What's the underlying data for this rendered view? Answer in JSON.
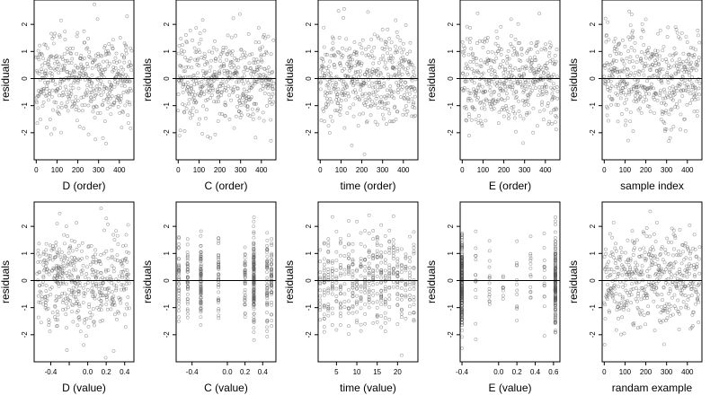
{
  "colors": {
    "points": "#555555",
    "axis": "#000000",
    "background": "#ffffff"
  },
  "chart_data": [
    {
      "type": "scatter",
      "xlabel": "D (order)",
      "ylabel": "residuals",
      "xlim": [
        -10,
        470
      ],
      "ylim": [
        -3.0,
        2.9
      ],
      "x_ticks": [
        0,
        100,
        200,
        300,
        400
      ],
      "x_tick_labels": [
        "0",
        "100",
        "200",
        "300",
        "400"
      ],
      "y_ticks": [
        -2,
        -1,
        0,
        1,
        2
      ],
      "y_tick_labels": [
        "-2",
        "-1",
        "0",
        "1",
        "2"
      ],
      "reference_line": 0,
      "distribution": {
        "kind": "index",
        "n": 460,
        "sd": 0.85
      }
    },
    {
      "type": "scatter",
      "xlabel": "C (order)",
      "ylabel": "residuals",
      "xlim": [
        -10,
        470
      ],
      "ylim": [
        -3.0,
        2.9
      ],
      "x_ticks": [
        0,
        100,
        200,
        300,
        400
      ],
      "x_tick_labels": [
        "0",
        "100",
        "200",
        "300",
        "400"
      ],
      "y_ticks": [
        -2,
        -1,
        0,
        1,
        2
      ],
      "y_tick_labels": [
        "-2",
        "-1",
        "0",
        "1",
        "2"
      ],
      "reference_line": 0,
      "distribution": {
        "kind": "index",
        "n": 460,
        "sd": 0.85
      }
    },
    {
      "type": "scatter",
      "xlabel": "time (order)",
      "ylabel": "residuals",
      "xlim": [
        -10,
        470
      ],
      "ylim": [
        -3.0,
        2.9
      ],
      "x_ticks": [
        0,
        100,
        200,
        300,
        400
      ],
      "x_tick_labels": [
        "0",
        "100",
        "200",
        "300",
        "400"
      ],
      "y_ticks": [
        -2,
        -1,
        0,
        1,
        2
      ],
      "y_tick_labels": [
        "-2",
        "-1",
        "0",
        "1",
        "2"
      ],
      "reference_line": 0,
      "distribution": {
        "kind": "index",
        "n": 460,
        "sd": 0.85
      }
    },
    {
      "type": "scatter",
      "xlabel": "E (order)",
      "ylabel": "residuals",
      "xlim": [
        -10,
        470
      ],
      "ylim": [
        -3.0,
        2.9
      ],
      "x_ticks": [
        0,
        100,
        200,
        300,
        400
      ],
      "x_tick_labels": [
        "0",
        "100",
        "200",
        "300",
        "400"
      ],
      "y_ticks": [
        -2,
        -1,
        0,
        1,
        2
      ],
      "y_tick_labels": [
        "-2",
        "-1",
        "0",
        "1",
        "2"
      ],
      "reference_line": 0,
      "distribution": {
        "kind": "index",
        "n": 460,
        "sd": 0.85
      }
    },
    {
      "type": "scatter",
      "xlabel": "sample index",
      "ylabel": "residuals",
      "xlim": [
        -10,
        470
      ],
      "ylim": [
        -3.0,
        2.9
      ],
      "x_ticks": [
        0,
        100,
        200,
        300,
        400
      ],
      "x_tick_labels": [
        "0",
        "100",
        "200",
        "300",
        "400"
      ],
      "y_ticks": [
        -2,
        -1,
        0,
        1,
        2
      ],
      "y_tick_labels": [
        "-2",
        "-1",
        "0",
        "1",
        "2"
      ],
      "reference_line": 0,
      "distribution": {
        "kind": "index",
        "n": 460,
        "sd": 0.85
      }
    },
    {
      "type": "scatter",
      "xlabel": "D (value)",
      "ylabel": "residuals",
      "xlim": [
        -0.58,
        0.5
      ],
      "ylim": [
        -3.0,
        2.9
      ],
      "x_ticks": [
        -0.4,
        -0.2,
        0.0,
        0.2,
        0.4
      ],
      "x_tick_labels": [
        "-0.4",
        "",
        "0.0",
        "0.2",
        "0.4"
      ],
      "y_ticks": [
        -2,
        -1,
        0,
        1,
        2
      ],
      "y_tick_labels": [
        "-2",
        "-1",
        "0",
        "1",
        "2"
      ],
      "reference_line": 0,
      "distribution": {
        "kind": "uniform",
        "n": 460,
        "sd": 0.85,
        "range": [
          -0.55,
          0.45
        ]
      }
    },
    {
      "type": "scatter",
      "xlabel": "C (value)",
      "ylabel": "residuals",
      "xlim": [
        -0.58,
        0.55
      ],
      "ylim": [
        -3.0,
        2.9
      ],
      "x_ticks": [
        -0.4,
        0.0,
        0.2,
        0.4
      ],
      "x_tick_labels": [
        "-0.4",
        "0.0",
        "0.2",
        "0.4"
      ],
      "y_ticks": [
        -2,
        -1,
        0,
        1,
        2
      ],
      "y_tick_labels": [
        "-2",
        "-1",
        "0",
        "1",
        "2"
      ],
      "reference_line": 0,
      "distribution": {
        "kind": "discrete",
        "n": 460,
        "sd": 0.85,
        "levels": [
          -0.55,
          -0.45,
          -0.3,
          -0.1,
          0.2,
          0.3,
          0.45,
          0.5
        ],
        "weights": [
          1,
          1,
          2,
          1,
          1,
          3,
          1,
          1
        ]
      }
    },
    {
      "type": "scatter",
      "xlabel": "time (value)",
      "ylabel": "residuals",
      "xlim": [
        0.5,
        25
      ],
      "ylim": [
        -3.0,
        2.9
      ],
      "x_ticks": [
        5,
        10,
        15,
        20
      ],
      "x_tick_labels": [
        "5",
        "10",
        "15",
        "20"
      ],
      "y_ticks": [
        -2,
        -1,
        0,
        1,
        2
      ],
      "y_tick_labels": [
        "-2",
        "-1",
        "0",
        "1",
        "2"
      ],
      "reference_line": 0,
      "distribution": {
        "kind": "discrete",
        "n": 460,
        "sd": 0.85,
        "levels": [
          1,
          2,
          3,
          4,
          5,
          6,
          7,
          8,
          9,
          10,
          11,
          12,
          13,
          14,
          15,
          16,
          17,
          18,
          19,
          20,
          21,
          22,
          23,
          24
        ],
        "weights": [
          1,
          1,
          1,
          1,
          1,
          1,
          1,
          1,
          1,
          1,
          1,
          1,
          1,
          1,
          1,
          1,
          1,
          1,
          1,
          1,
          1,
          1,
          1,
          1
        ]
      }
    },
    {
      "type": "scatter",
      "xlabel": "E (value)",
      "ylabel": "residuals",
      "xlim": [
        -0.42,
        0.67
      ],
      "ylim": [
        -3.0,
        2.9
      ],
      "x_ticks": [
        -0.4,
        0.0,
        0.2,
        0.4,
        0.6
      ],
      "x_tick_labels": [
        "-0.4",
        "0.0",
        "0.2",
        "0.4",
        "0.6"
      ],
      "y_ticks": [
        -2,
        -1,
        0,
        1,
        2
      ],
      "y_tick_labels": [
        "-2",
        "-1",
        "0",
        "1",
        "2"
      ],
      "reference_line": 0,
      "distribution": {
        "kind": "discrete",
        "n": 460,
        "sd": 0.85,
        "levels": [
          -0.4,
          -0.25,
          -0.1,
          0.05,
          0.2,
          0.35,
          0.5,
          0.62
        ],
        "weights": [
          10,
          0.6,
          0.6,
          0.6,
          0.6,
          0.6,
          0.6,
          9
        ]
      }
    },
    {
      "type": "scatter",
      "xlabel": "randam example",
      "ylabel": "residuals",
      "xlim": [
        -10,
        470
      ],
      "ylim": [
        -3.0,
        2.9
      ],
      "x_ticks": [
        0,
        100,
        200,
        300,
        400
      ],
      "x_tick_labels": [
        "0",
        "100",
        "200",
        "300",
        "400"
      ],
      "y_ticks": [
        -2,
        -1,
        0,
        1,
        2
      ],
      "y_tick_labels": [
        "-2",
        "-1",
        "0",
        "1",
        "2"
      ],
      "reference_line": 0,
      "distribution": {
        "kind": "index",
        "n": 460,
        "sd": 0.85
      }
    }
  ]
}
